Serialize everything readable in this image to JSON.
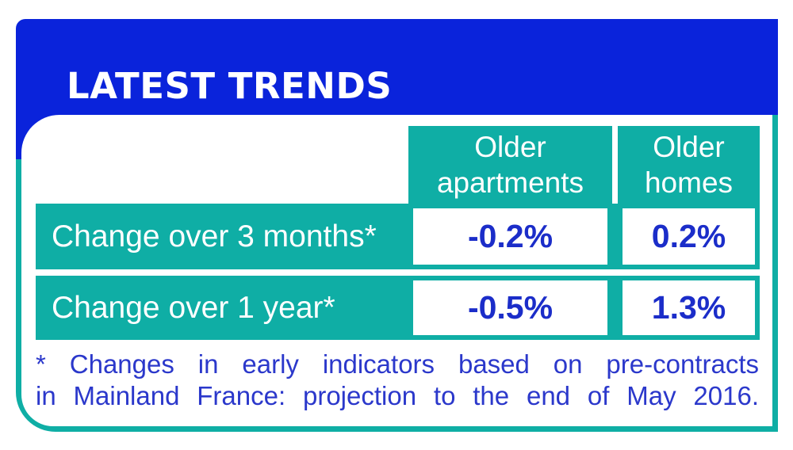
{
  "card": {
    "title": "LATEST TRENDS",
    "colors": {
      "header_blue": "#0A23DB",
      "teal": "#0FAEA5",
      "value_text_blue": "#1B2DC9",
      "footnote_blue": "#2B38CB",
      "white": "#FFFFFF"
    },
    "table": {
      "column_headers": [
        "Older apartments",
        "Older homes"
      ],
      "rows": [
        {
          "label": "Change over 3 months*",
          "older_apartments": "-0.2%",
          "older_homes": "0.2%"
        },
        {
          "label": "Change over 1 year*",
          "older_apartments": "-0.5%",
          "older_homes": "1.3%"
        }
      ]
    },
    "footnote": {
      "line1": "* Changes in early indicators based on pre-contracts",
      "line2": "in Mainland France: projection to the end of May 2016."
    }
  },
  "chart_data": {
    "type": "table",
    "title": "LATEST TRENDS",
    "columns": [
      "",
      "Older apartments",
      "Older homes"
    ],
    "rows": [
      [
        "Change over 3 months*",
        "-0.2%",
        "0.2%"
      ],
      [
        "Change over 1 year*",
        "-0.5%",
        "1.3%"
      ]
    ],
    "values_percent": {
      "older_apartments": {
        "change_3_months": -0.2,
        "change_1_year": -0.5
      },
      "older_homes": {
        "change_3_months": 0.2,
        "change_1_year": 1.3
      }
    },
    "footnote": "* Changes in early indicators based on pre-contracts in Mainland France: projection to the end of May 2016."
  }
}
